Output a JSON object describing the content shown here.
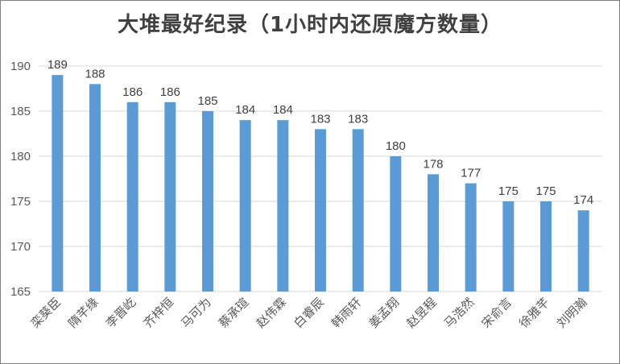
{
  "chart_data": {
    "type": "bar",
    "title": "大堆最好纪录（1小时内还原魔方数量）",
    "categories": [
      "栾葵臣",
      "隋芊缘",
      "李晋屹",
      "齐梓恒",
      "马可为",
      "蔡承瑄",
      "赵伟霖",
      "白睿辰",
      "韩雨轩",
      "姜孟翔",
      "赵昱程",
      "马浩然",
      "宋俞言",
      "徐雅芊",
      "刘明瀚"
    ],
    "values": [
      189,
      188,
      186,
      186,
      185,
      184,
      184,
      183,
      183,
      180,
      178,
      177,
      175,
      175,
      174
    ],
    "ylim": [
      165,
      190
    ],
    "yticks": [
      165,
      170,
      175,
      180,
      185,
      190
    ],
    "grid": true,
    "legend": "none",
    "colors": {
      "bar": "#5b9bd5",
      "grid": "#d9d9d9"
    },
    "xlabel": "",
    "ylabel": ""
  }
}
